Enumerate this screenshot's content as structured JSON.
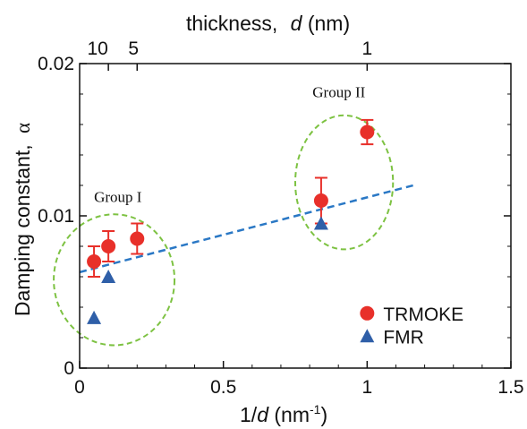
{
  "chart_data": {
    "type": "scatter",
    "top_axis_label": "thickness,",
    "top_axis_label_symbol": "d",
    "top_axis_label_unit": "(nm)",
    "top_ticks": [
      {
        "label": "10",
        "x": 0.1
      },
      {
        "label": "5",
        "x": 0.2
      },
      {
        "label": "1",
        "x": 1.0
      }
    ],
    "xlabel_prefix": "1/",
    "xlabel_symbol": "d",
    "xlabel_unit": " (nm",
    "xlabel_exp": "-1",
    "xlabel_close": ")",
    "ylabel": "Damping constant,",
    "ylabel_symbol": "α",
    "xlim": [
      0,
      1.5
    ],
    "ylim": [
      0,
      0.02
    ],
    "x_ticks": [
      {
        "value": 0,
        "label": "0"
      },
      {
        "value": 0.5,
        "label": "0.5"
      },
      {
        "value": 1.0,
        "label": "1"
      },
      {
        "value": 1.5,
        "label": "1.5"
      }
    ],
    "y_ticks": [
      {
        "value": 0,
        "label": "0"
      },
      {
        "value": 0.01,
        "label": "0.01"
      },
      {
        "value": 0.02,
        "label": "0.02"
      }
    ],
    "series": [
      {
        "name": "TRMOKE",
        "color": "#e8302a",
        "marker": "circle",
        "points": [
          {
            "x": 0.05,
            "y": 0.007,
            "err": 0.001
          },
          {
            "x": 0.1,
            "y": 0.008,
            "err": 0.001
          },
          {
            "x": 0.2,
            "y": 0.0085,
            "err": 0.001
          },
          {
            "x": 0.84,
            "y": 0.011,
            "err": 0.0015
          },
          {
            "x": 1.0,
            "y": 0.0155,
            "err": 0.0008
          }
        ]
      },
      {
        "name": "FMR",
        "color": "#2f5fa8",
        "marker": "triangle",
        "points": [
          {
            "x": 0.05,
            "y": 0.0033
          },
          {
            "x": 0.1,
            "y": 0.006
          },
          {
            "x": 0.84,
            "y": 0.0095
          }
        ]
      }
    ],
    "fit_line": {
      "x": [
        0,
        1.16
      ],
      "y": [
        0.0063,
        0.012
      ],
      "color": "#2a78c5"
    },
    "groups": [
      {
        "label": "Group I",
        "cx": 0.12,
        "cy": 0.0058,
        "rx": 0.21,
        "ry": 0.0043
      },
      {
        "label": "Group II",
        "cx": 0.92,
        "cy": 0.0122,
        "rx": 0.17,
        "ry": 0.0044
      }
    ],
    "group_color": "#7dc242",
    "legend_position": "bottom-right"
  }
}
